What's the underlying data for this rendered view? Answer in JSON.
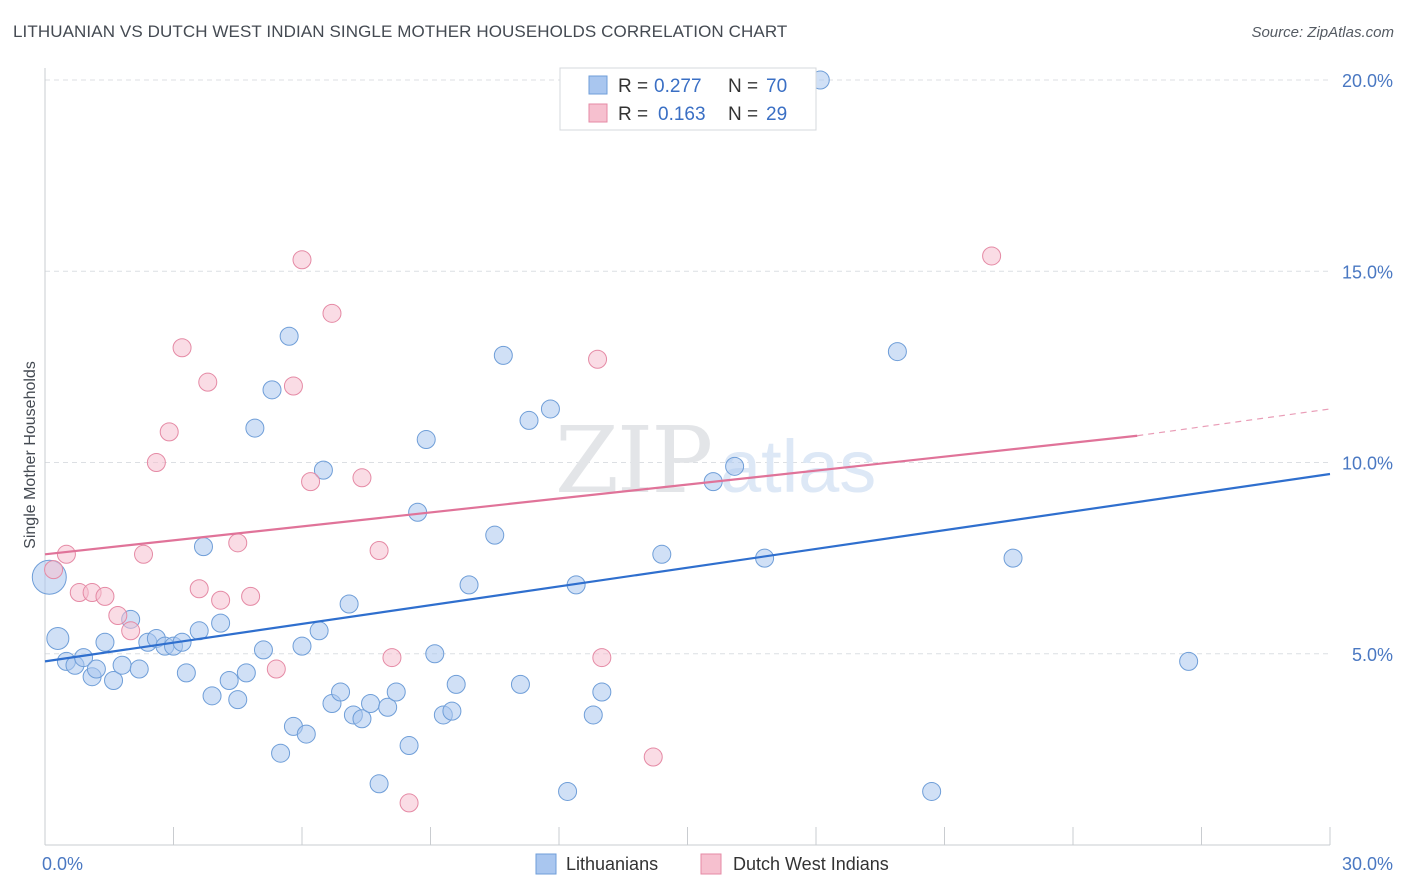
{
  "title": "LITHUANIAN VS DUTCH WEST INDIAN SINGLE MOTHER HOUSEHOLDS CORRELATION CHART",
  "source": "Source: ZipAtlas.com",
  "watermark": {
    "zip": "ZIP",
    "atlas": "atlas"
  },
  "legend": {
    "r_label": "R =",
    "n_label": "N =",
    "rows": [
      {
        "r": "0.277",
        "n": "70",
        "color": "#a9c6ef",
        "stroke": "#6f9ed8"
      },
      {
        "r": "0.163",
        "n": "29",
        "color": "#f6c0cf",
        "stroke": "#e58aa5"
      }
    ]
  },
  "bottom_legend": [
    {
      "label": "Lithuanians",
      "color": "#a9c6ef",
      "stroke": "#6f9ed8"
    },
    {
      "label": "Dutch West Indians",
      "color": "#f6c0cf",
      "stroke": "#e58aa5"
    }
  ],
  "chart_data": {
    "type": "scatter",
    "xlabel": "",
    "ylabel": "Single Mother Households",
    "xlim": [
      0,
      30
    ],
    "ylim": [
      0,
      20
    ],
    "x_tick_labels": [
      "0.0%",
      "30.0%"
    ],
    "y_ticks": [
      5,
      10,
      15,
      20
    ],
    "y_tick_labels": [
      "5.0%",
      "10.0%",
      "15.0%",
      "20.0%"
    ],
    "grid": true,
    "legend_position": "top-center",
    "series": [
      {
        "name": "Lithuanians",
        "color": "#6f9ed8",
        "fill": "#a9c6ef",
        "trend": {
          "x0": 0,
          "y0": 4.8,
          "x1": 30,
          "y1": 9.7,
          "color": "#2f6fce"
        },
        "points": [
          [
            0.1,
            7.0
          ],
          [
            0.3,
            5.4
          ],
          [
            0.5,
            4.8
          ],
          [
            0.7,
            4.7
          ],
          [
            0.9,
            4.9
          ],
          [
            1.1,
            4.4
          ],
          [
            1.2,
            4.6
          ],
          [
            1.4,
            5.3
          ],
          [
            1.6,
            4.3
          ],
          [
            1.8,
            4.7
          ],
          [
            2.0,
            5.9
          ],
          [
            2.2,
            4.6
          ],
          [
            2.4,
            5.3
          ],
          [
            2.6,
            5.4
          ],
          [
            2.8,
            5.2
          ],
          [
            3.0,
            5.2
          ],
          [
            3.2,
            5.3
          ],
          [
            3.3,
            4.5
          ],
          [
            3.6,
            5.6
          ],
          [
            3.7,
            7.8
          ],
          [
            3.9,
            3.9
          ],
          [
            4.1,
            5.8
          ],
          [
            4.3,
            4.3
          ],
          [
            4.5,
            3.8
          ],
          [
            4.7,
            4.5
          ],
          [
            4.9,
            10.9
          ],
          [
            5.1,
            5.1
          ],
          [
            5.3,
            11.9
          ],
          [
            5.5,
            2.4
          ],
          [
            5.7,
            13.3
          ],
          [
            5.8,
            3.1
          ],
          [
            6.0,
            5.2
          ],
          [
            6.1,
            2.9
          ],
          [
            6.4,
            5.6
          ],
          [
            6.5,
            9.8
          ],
          [
            6.7,
            3.7
          ],
          [
            6.9,
            4.0
          ],
          [
            7.1,
            6.3
          ],
          [
            7.2,
            3.4
          ],
          [
            7.4,
            3.3
          ],
          [
            7.6,
            3.7
          ],
          [
            7.8,
            1.6
          ],
          [
            8.0,
            3.6
          ],
          [
            8.2,
            4.0
          ],
          [
            8.5,
            2.6
          ],
          [
            8.7,
            8.7
          ],
          [
            8.9,
            10.6
          ],
          [
            9.1,
            5.0
          ],
          [
            9.3,
            3.4
          ],
          [
            9.5,
            3.5
          ],
          [
            9.6,
            4.2
          ],
          [
            9.9,
            6.8
          ],
          [
            10.5,
            8.1
          ],
          [
            10.7,
            12.8
          ],
          [
            11.1,
            4.2
          ],
          [
            11.3,
            11.1
          ],
          [
            11.8,
            11.4
          ],
          [
            12.2,
            1.4
          ],
          [
            12.4,
            6.8
          ],
          [
            12.8,
            3.4
          ],
          [
            13.0,
            4.0
          ],
          [
            14.4,
            7.6
          ],
          [
            15.6,
            9.5
          ],
          [
            16.1,
            9.9
          ],
          [
            16.8,
            7.5
          ],
          [
            18.1,
            20.0
          ],
          [
            19.9,
            12.9
          ],
          [
            20.7,
            1.4
          ],
          [
            22.6,
            7.5
          ],
          [
            26.7,
            4.8
          ]
        ]
      },
      {
        "name": "Dutch West Indians",
        "color": "#e58aa5",
        "fill": "#f6c0cf",
        "trend": {
          "x0": 0,
          "y0": 7.6,
          "x1": 25.5,
          "y1": 10.7,
          "x2": 30,
          "y2": 11.4,
          "color": "#e07399"
        },
        "points": [
          [
            0.2,
            7.2
          ],
          [
            0.5,
            7.6
          ],
          [
            0.8,
            6.6
          ],
          [
            1.1,
            6.6
          ],
          [
            1.4,
            6.5
          ],
          [
            1.7,
            6.0
          ],
          [
            2.0,
            5.6
          ],
          [
            2.3,
            7.6
          ],
          [
            2.6,
            10.0
          ],
          [
            2.9,
            10.8
          ],
          [
            3.2,
            13.0
          ],
          [
            3.6,
            6.7
          ],
          [
            3.8,
            12.1
          ],
          [
            4.1,
            6.4
          ],
          [
            4.5,
            7.9
          ],
          [
            4.8,
            6.5
          ],
          [
            5.4,
            4.6
          ],
          [
            5.8,
            12.0
          ],
          [
            6.0,
            15.3
          ],
          [
            6.2,
            9.5
          ],
          [
            6.7,
            13.9
          ],
          [
            7.4,
            9.6
          ],
          [
            7.8,
            7.7
          ],
          [
            8.1,
            4.9
          ],
          [
            8.5,
            1.1
          ],
          [
            12.9,
            12.7
          ],
          [
            13.0,
            4.9
          ],
          [
            14.2,
            2.3
          ],
          [
            22.1,
            15.4
          ]
        ]
      }
    ]
  }
}
